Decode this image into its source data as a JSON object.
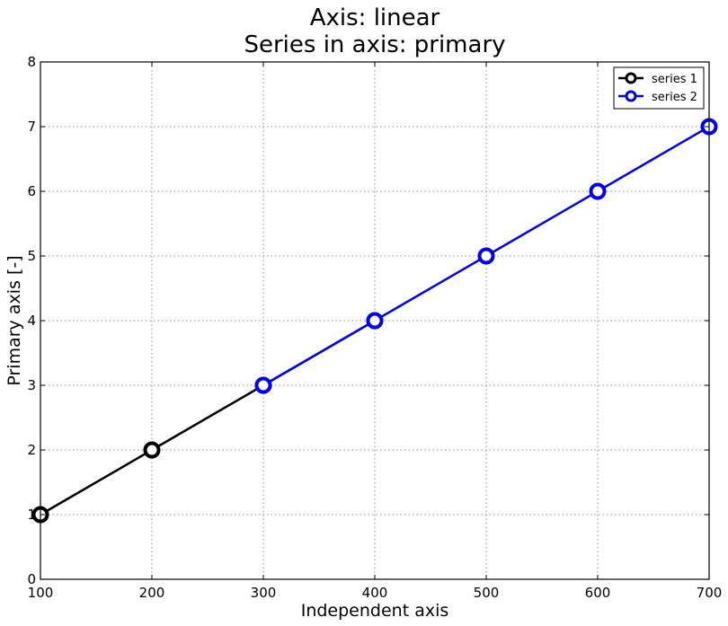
{
  "chart_data": {
    "type": "line",
    "title": [
      "Axis: linear",
      "Series in axis: primary"
    ],
    "xlabel": "Independent axis",
    "ylabel": "Primary axis [-]",
    "xlim": [
      100,
      700
    ],
    "ylim": [
      0,
      8
    ],
    "xticks": [
      "100",
      "200",
      "300",
      "400",
      "500",
      "600",
      "700"
    ],
    "yticks": [
      "0",
      "1",
      "2",
      "3",
      "4",
      "5",
      "6",
      "7",
      "8"
    ],
    "grid": true,
    "legend_position": "top-right",
    "series": [
      {
        "name": "series 1",
        "color": "#000000",
        "marker": "circle-open",
        "x": [
          100,
          200,
          300,
          400
        ],
        "y": [
          1,
          2,
          3,
          4
        ]
      },
      {
        "name": "series 2",
        "color": "#0000ee",
        "marker": "circle-open",
        "x": [
          300,
          400,
          500,
          600,
          700
        ],
        "y": [
          3,
          4,
          5,
          6,
          7
        ]
      }
    ]
  }
}
